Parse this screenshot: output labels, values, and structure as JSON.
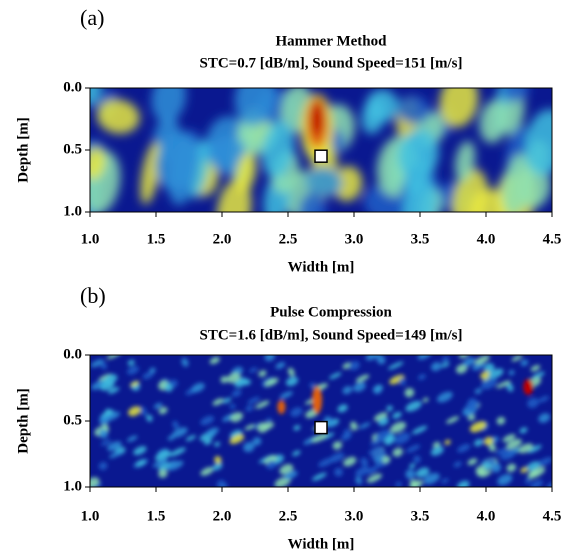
{
  "chart_data": [
    {
      "type": "heatmap",
      "panel_label": "(a)",
      "title": "Hammer Method",
      "subtitle": "STC=0.7 [dB/m], Sound Speed=151 [m/s]",
      "xlabel": "Width [m]",
      "ylabel": "Depth [m]",
      "xlim": [
        1.0,
        4.5
      ],
      "ylim": [
        0,
        1.0
      ],
      "y_inverted": true,
      "xticks": [
        {
          "value": 1,
          "label": "1.0"
        },
        1.5,
        {
          "value": 2,
          "label": "2.0"
        },
        2.5,
        {
          "value": 3,
          "label": "3.0"
        },
        3.5,
        {
          "value": 4,
          "label": "4.0"
        },
        4.5
      ],
      "yticks": [
        {
          "value": 0,
          "label": "0.0"
        },
        0.5,
        {
          "value": 1,
          "label": "1.0"
        }
      ],
      "marker": {
        "x": 2.75,
        "y": 0.55
      }
    },
    {
      "type": "heatmap",
      "panel_label": "(b)",
      "title": "Pulse Compression",
      "subtitle": "STC=1.6 [dB/m], Sound Speed=149 [m/s]",
      "xlabel": "Width [m]",
      "ylabel": "Depth [m]",
      "xlim": [
        1.0,
        4.5
      ],
      "ylim": [
        0,
        1.0
      ],
      "y_inverted": true,
      "xticks": [
        {
          "value": 1,
          "label": "1.0"
        },
        1.5,
        {
          "value": 2,
          "label": "2.0"
        },
        2.5,
        {
          "value": 3,
          "label": "3.0"
        },
        3.5,
        {
          "value": 4,
          "label": "4.0"
        },
        4.5
      ],
      "yticks": [
        {
          "value": 0,
          "label": "0.0"
        },
        0.5,
        {
          "value": 1,
          "label": "1.0"
        }
      ],
      "marker": {
        "x": 2.75,
        "y": 0.55
      }
    }
  ]
}
